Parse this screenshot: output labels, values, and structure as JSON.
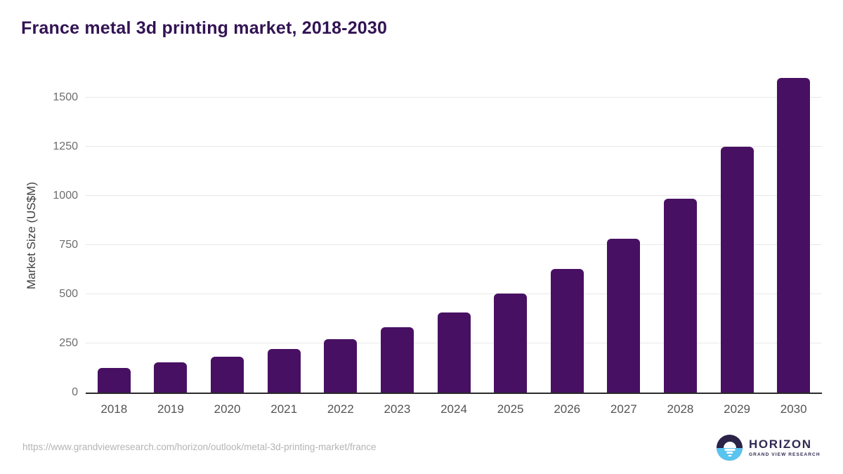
{
  "title": "France metal 3d printing market, 2018-2030",
  "chart_data": {
    "type": "bar",
    "title": "France metal 3d printing market, 2018-2030",
    "categories": [
      "2018",
      "2019",
      "2020",
      "2021",
      "2022",
      "2023",
      "2024",
      "2025",
      "2026",
      "2027",
      "2028",
      "2029",
      "2030"
    ],
    "values": [
      125,
      152,
      183,
      222,
      271,
      332,
      408,
      503,
      628,
      782,
      985,
      1250,
      1600
    ],
    "xlabel": "",
    "ylabel": "Market Size (US$M)",
    "ylim": [
      0,
      1600
    ],
    "yticks": [
      0,
      250,
      500,
      750,
      1000,
      1250,
      1500
    ],
    "grid": true,
    "legend": "none",
    "bar_color": "#481063"
  },
  "footer": {
    "source_url": "https://www.grandviewresearch.com/horizon/outlook/metal-3d-printing-market/france",
    "logo": {
      "name": "HORIZON",
      "subtitle": "GRAND VIEW RESEARCH"
    }
  },
  "colors": {
    "title": "#321353",
    "bar": "#481063",
    "axis_line": "#2b2b2b",
    "gridline": "#e8e8e8",
    "y_tick_text": "#6d6d6d",
    "x_tick_text": "#545454",
    "source_text": "#b4b4b4",
    "logo_navy": "#2b2348",
    "logo_blue": "#58c4f0",
    "logo_text": "#302a52"
  }
}
